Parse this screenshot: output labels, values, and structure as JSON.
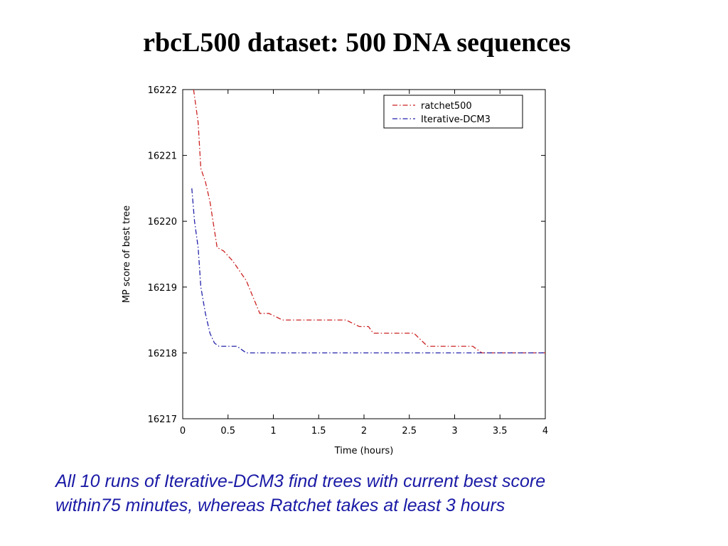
{
  "slide": {
    "title": "rbcL500 dataset: 500 DNA sequences",
    "caption_line1": "All 10 runs of Iterative-DCM3 find trees with current best score",
    "caption_line2": "within75 minutes, whereas Ratchet takes at least 3 hours"
  },
  "chart_data": {
    "type": "line",
    "title": "",
    "xlabel": "Time (hours)",
    "ylabel": "MP score of best tree",
    "xlim": [
      0,
      4
    ],
    "ylim": [
      16217,
      16222
    ],
    "xticks": [
      0,
      0.5,
      1,
      1.5,
      2,
      2.5,
      3,
      3.5,
      4
    ],
    "xtick_labels": [
      "0",
      "0.5",
      "1",
      "1.5",
      "2",
      "2.5",
      "3",
      "3.5",
      "4"
    ],
    "yticks": [
      16217,
      16218,
      16219,
      16220,
      16221,
      16222
    ],
    "ytick_labels": [
      "16217",
      "16218",
      "16219",
      "16220",
      "16221",
      "16222"
    ],
    "grid": false,
    "legend_position": "top-right",
    "series": [
      {
        "name": "ratchet500",
        "color": "#cc2222",
        "style": "dash-dot",
        "x": [
          0.12,
          0.17,
          0.2,
          0.25,
          0.3,
          0.38,
          0.45,
          0.55,
          0.7,
          0.85,
          0.95,
          1.1,
          1.5,
          1.8,
          1.95,
          2.05,
          2.1,
          2.5,
          2.55,
          2.7,
          3.0,
          3.2,
          3.3,
          4.0
        ],
        "y": [
          16222.0,
          16221.5,
          16220.8,
          16220.6,
          16220.3,
          16219.6,
          16219.55,
          16219.4,
          16219.1,
          16218.6,
          16218.6,
          16218.5,
          16218.5,
          16218.5,
          16218.4,
          16218.4,
          16218.3,
          16218.3,
          16218.3,
          16218.1,
          16218.1,
          16218.1,
          16218.0,
          16218.0
        ]
      },
      {
        "name": "Iterative-DCM3",
        "color": "#2222aa",
        "style": "dash-dot",
        "x": [
          0.1,
          0.13,
          0.17,
          0.2,
          0.25,
          0.3,
          0.35,
          0.4,
          0.6,
          0.7,
          1.0,
          4.0
        ],
        "y": [
          16220.5,
          16220.0,
          16219.6,
          16219.0,
          16218.6,
          16218.3,
          16218.15,
          16218.1,
          16218.1,
          16218.0,
          16218.0,
          16218.0
        ]
      }
    ]
  }
}
